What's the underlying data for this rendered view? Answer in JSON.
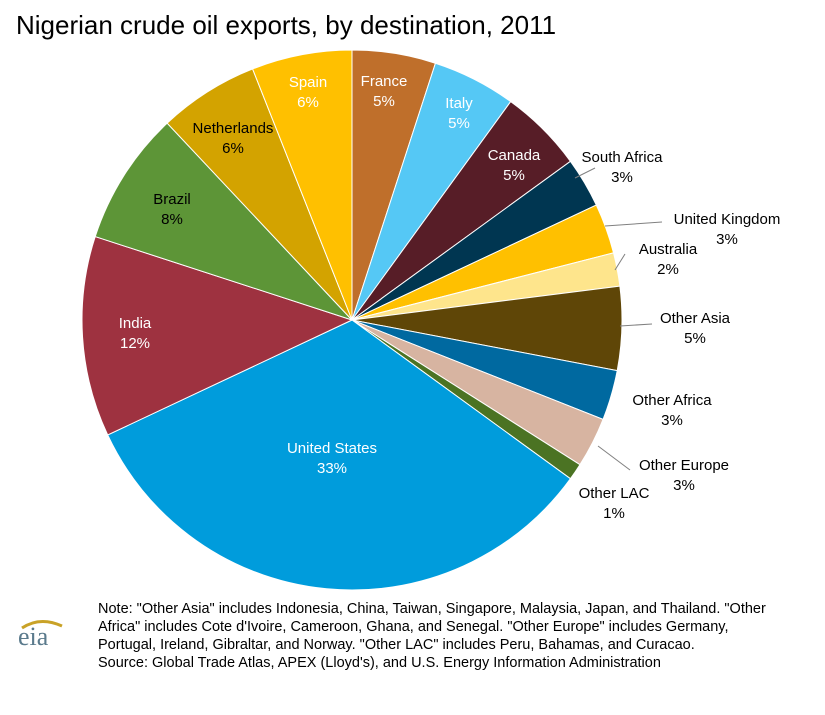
{
  "chart_data": {
    "type": "pie",
    "title": "Nigerian crude oil exports, by destination, 2011",
    "slices": [
      {
        "label": "France",
        "value": 5,
        "display": "5%",
        "color": "#BF6F2B"
      },
      {
        "label": "Italy",
        "value": 5,
        "display": "5%",
        "color": "#55C8F5"
      },
      {
        "label": "Canada",
        "value": 5,
        "display": "5%",
        "color": "#571D27"
      },
      {
        "label": "South Africa",
        "value": 3,
        "display": "3%",
        "color": "#003651"
      },
      {
        "label": "United Kingdom",
        "value": 3,
        "display": "3%",
        "color": "#FFC000"
      },
      {
        "label": "Australia",
        "value": 2,
        "display": "2%",
        "color": "#FEE58C"
      },
      {
        "label": "Other Asia",
        "value": 5,
        "display": "5%",
        "color": "#5F4607"
      },
      {
        "label": "Other Africa",
        "value": 3,
        "display": "3%",
        "color": "#0069A0"
      },
      {
        "label": "Other Europe",
        "value": 3,
        "display": "3%",
        "color": "#D7B4A1"
      },
      {
        "label": "Other LAC",
        "value": 1,
        "display": "1%",
        "color": "#4B7323"
      },
      {
        "label": "United States",
        "value": 33,
        "display": "33%",
        "color": "#009CDC"
      },
      {
        "label": "India",
        "value": 12,
        "display": "12%",
        "color": "#9E3240"
      },
      {
        "label": "Brazil",
        "value": 8,
        "display": "8%",
        "color": "#5D9537"
      },
      {
        "label": "Netherlands",
        "value": 6,
        "display": "6%",
        "color": "#D3A300"
      },
      {
        "label": "Spain",
        "value": 6,
        "display": "6%",
        "color": "#FFC000"
      }
    ]
  },
  "footnote": {
    "note": "Note:  \"Other Asia\" includes Indonesia, China, Taiwan, Singapore, Malaysia, Japan, and Thailand. \"Other Africa\" includes Cote d'Ivoire, Cameroon, Ghana, and Senegal. \"Other Europe\" includes Germany, Portugal, Ireland, Gibraltar, and Norway. \"Other LAC\" includes Peru, Bahamas, and Curacao.",
    "source": "Source: Global Trade Atlas, APEX (Lloyd's), and U.S. Energy Information Administration"
  },
  "logo": {
    "text": "eia",
    "icon": "eia-logo-icon"
  }
}
